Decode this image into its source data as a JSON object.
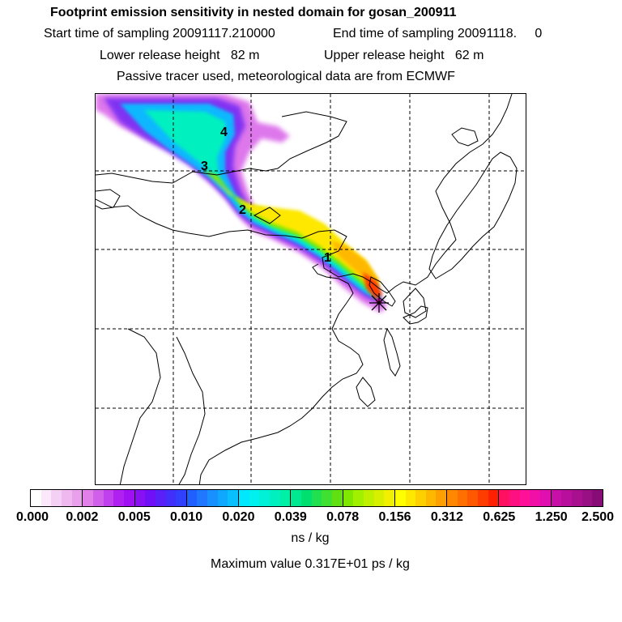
{
  "header": {
    "title": "Footprint emission sensitivity in nested domain for gosan_200911",
    "start_time": "Start time of sampling 20091117.210000",
    "end_time": "End time of sampling 20091118.     0",
    "lower_height": "Lower release height   82 m",
    "upper_height": "Upper release height   62 m",
    "tracer_note": "Passive tracer used, meteorological data are from ECMWF"
  },
  "map": {
    "receptor_symbol": "*",
    "trajectory_markers": [
      "1",
      "2",
      "3",
      "4"
    ]
  },
  "colorbar": {
    "tick_labels": [
      "0.000",
      "0.002",
      "0.005",
      "0.010",
      "0.020",
      "0.039",
      "0.078",
      "0.156",
      "0.312",
      "0.625",
      "1.250",
      "2.500"
    ],
    "segments": [
      [
        "#ffffff",
        "#fbe8fb",
        "#f5d0f5",
        "#efb8ef",
        "#e8a0ea"
      ],
      [
        "#e080e8",
        "#d060ea",
        "#c040ee",
        "#b020f0",
        "#a010f2"
      ],
      [
        "#8a10f4",
        "#7010f6",
        "#5a20f8",
        "#4030fa",
        "#3040fc"
      ],
      [
        "#2060ff",
        "#2078ff",
        "#1890ff",
        "#10a8ff",
        "#08c0ff"
      ],
      [
        "#00e8ff",
        "#00f0f0",
        "#00f0d8",
        "#00f0c0",
        "#00f0a8"
      ],
      [
        "#00e890",
        "#00e070",
        "#20e050",
        "#40e030",
        "#60e010"
      ],
      [
        "#80e800",
        "#a0f000",
        "#c0f000",
        "#d8f000",
        "#f0f000"
      ],
      [
        "#ffff00",
        "#ffe800",
        "#ffd000",
        "#ffb800",
        "#ffa000"
      ],
      [
        "#ff8800",
        "#ff7000",
        "#ff5800",
        "#ff3c00",
        "#ff2000"
      ],
      [
        "#ff1060",
        "#ff1080",
        "#ff1098",
        "#f010a8",
        "#e010b0"
      ],
      [
        "#c810a8",
        "#b8109c",
        "#a81090",
        "#981084",
        "#880c78"
      ]
    ],
    "unit": "ns / kg"
  },
  "footer": {
    "max_value": "Maximum value  0.317E+01 ps / kg"
  }
}
